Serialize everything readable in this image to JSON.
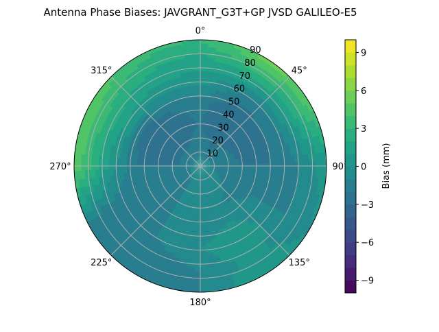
{
  "chart_data": {
    "type": "heatmap",
    "subtype": "polar-contourf",
    "title": "Antenna Phase Biases: JAVGRANT_G3T+GP JVSD GALILEO-E5",
    "colorbar_label": "Bias (mm)",
    "colormap": "viridis",
    "levels": [
      -10,
      10
    ],
    "level_step": 1,
    "colorbar_ticks": [
      "−9",
      "−6",
      "−3",
      "0",
      "3",
      "6",
      "9"
    ],
    "colorbar_tick_values": [
      -9,
      -6,
      -3,
      0,
      3,
      6,
      9
    ],
    "angular_ticks": [
      "0°",
      "45°",
      "90°",
      "135°",
      "180°",
      "225°",
      "270°",
      "315°"
    ],
    "angular_tick_values": [
      0,
      45,
      90,
      135,
      180,
      225,
      270,
      315
    ],
    "radial_ticks": [
      "10",
      "20",
      "30",
      "40",
      "50",
      "60",
      "70",
      "80",
      "90"
    ],
    "radial_tick_values": [
      10,
      20,
      30,
      40,
      50,
      60,
      70,
      80,
      90
    ],
    "rlim": [
      0,
      90
    ],
    "azimuths_deg": [
      0,
      30,
      60,
      90,
      120,
      150,
      180,
      210,
      240,
      270,
      300,
      330
    ],
    "radii": [
      0,
      15,
      30,
      45,
      60,
      75,
      90
    ],
    "values_mm": [
      [
        -0.5,
        -0.5,
        -0.5,
        -0.5,
        -0.5,
        -0.5,
        -0.5,
        -0.5,
        -0.5,
        -0.5,
        -0.5,
        -0.5
      ],
      [
        -1.5,
        -2,
        -1.5,
        -1.5,
        -1,
        -0.5,
        -0.5,
        -1,
        -1.5,
        -2,
        -2,
        -2
      ],
      [
        -2,
        -3,
        -2.5,
        -2,
        -1.5,
        -1,
        -0.5,
        -1,
        -1.5,
        -2,
        -2.5,
        -2.5
      ],
      [
        -1.5,
        -3,
        -2.5,
        -2,
        -1,
        0,
        -0.5,
        -1,
        -1.5,
        -2,
        -2.5,
        -2
      ],
      [
        0.5,
        -1,
        -1,
        -2,
        -1,
        1,
        0,
        -1,
        -2,
        0,
        1,
        0.5
      ],
      [
        1.5,
        2.5,
        2,
        -0.5,
        -1,
        0.5,
        -1,
        -2,
        -2,
        2.5,
        3,
        2
      ],
      [
        3,
        5.5,
        5,
        0.5,
        0,
        1,
        -1,
        -2,
        -1.5,
        5,
        5,
        3.5
      ]
    ]
  }
}
